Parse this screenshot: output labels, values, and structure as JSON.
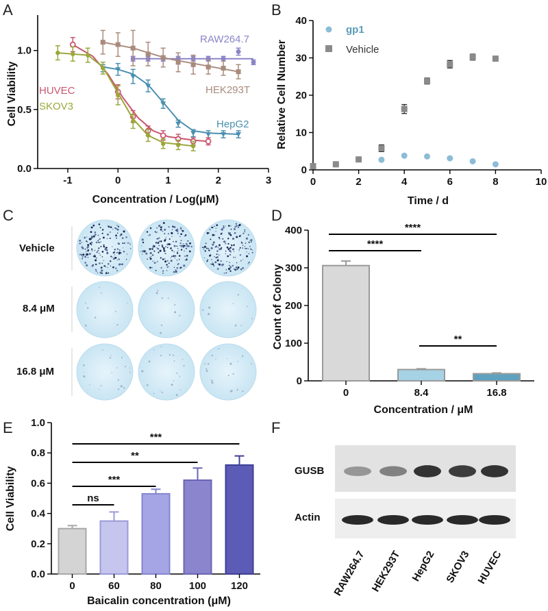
{
  "panels": {
    "A": {
      "label": "A",
      "chart_data": {
        "type": "scatter",
        "xlabel": "Concentration / Log(μM)",
        "ylabel": "Cell Viability",
        "xlim": [
          -1.6,
          3.0
        ],
        "ylim": [
          0.0,
          1.3
        ],
        "xticks": [
          "-1",
          "0",
          "1",
          "2",
          "3"
        ],
        "yticks": [
          "0.0",
          "0.5",
          "1.0"
        ],
        "series": [
          {
            "name": "RAW264.7",
            "color": "#8a84c8",
            "x": [
              0.3,
              0.6,
              0.9,
              1.2,
              1.5,
              1.8,
              2.1,
              2.4,
              2.7
            ],
            "y": [
              0.93,
              0.93,
              0.93,
              0.93,
              0.93,
              0.93,
              0.93,
              0.99,
              0.9
            ],
            "err": [
              0.02,
              0.02,
              0.02,
              0.02,
              0.02,
              0.02,
              0.02,
              0.03,
              0.02
            ],
            "fit": [
              [
                0.3,
                0.93
              ],
              [
                2.7,
                0.93
              ]
            ]
          },
          {
            "name": "HEK293T",
            "color": "#a98b7c",
            "x": [
              -0.3,
              0.0,
              0.3,
              0.6,
              0.9,
              1.2,
              1.5,
              1.8,
              2.1,
              2.4
            ],
            "y": [
              1.07,
              1.05,
              1.02,
              0.97,
              0.94,
              0.9,
              0.88,
              0.86,
              0.85,
              0.82
            ],
            "err": [
              0.1,
              0.1,
              0.15,
              0.1,
              0.08,
              0.08,
              0.08,
              0.06,
              0.06,
              0.06
            ],
            "fit": [
              [
                -0.3,
                1.07
              ],
              [
                0.3,
                1.02
              ],
              [
                1.0,
                0.93
              ],
              [
                2.4,
                0.82
              ]
            ]
          },
          {
            "name": "HepG2",
            "color": "#4a8fb0",
            "x": [
              -0.3,
              0.0,
              0.3,
              0.6,
              0.9,
              1.2,
              1.5,
              1.8,
              2.1,
              2.4
            ],
            "y": [
              0.85,
              0.84,
              0.78,
              0.7,
              0.55,
              0.38,
              0.3,
              0.29,
              0.29,
              0.29
            ],
            "err": [
              0.03,
              0.05,
              0.06,
              0.05,
              0.04,
              0.03,
              0.03,
              0.03,
              0.03,
              0.03
            ],
            "fit": [
              [
                -0.3,
                0.86
              ],
              [
                0.0,
                0.84
              ],
              [
                0.3,
                0.8
              ],
              [
                0.6,
                0.71
              ],
              [
                0.9,
                0.56
              ],
              [
                1.2,
                0.41
              ],
              [
                1.5,
                0.32
              ],
              [
                1.8,
                0.3
              ],
              [
                2.4,
                0.29
              ]
            ]
          },
          {
            "name": "HUVEC",
            "color": "#c9566f",
            "x": [
              -0.9,
              0.0,
              0.3,
              0.6,
              0.9,
              1.2,
              1.5,
              1.8
            ],
            "y": [
              1.05,
              0.65,
              0.44,
              0.32,
              0.28,
              0.25,
              0.23,
              0.23
            ],
            "err": [
              0.06,
              0.06,
              0.05,
              0.04,
              0.04,
              0.04,
              0.03,
              0.03
            ],
            "fit": [
              [
                -0.9,
                1.05
              ],
              [
                -0.5,
                0.95
              ],
              [
                -0.2,
                0.8
              ],
              [
                0.1,
                0.6
              ],
              [
                0.4,
                0.43
              ],
              [
                0.7,
                0.32
              ],
              [
                1.0,
                0.27
              ],
              [
                1.5,
                0.24
              ],
              [
                1.8,
                0.23
              ]
            ]
          },
          {
            "name": "SKOV3",
            "color": "#9aa83a",
            "x": [
              -1.2,
              -0.9,
              -0.6,
              -0.3,
              0.0,
              0.3,
              0.6,
              0.9,
              1.2,
              1.5
            ],
            "y": [
              0.98,
              0.97,
              0.96,
              0.85,
              0.62,
              0.4,
              0.28,
              0.21,
              0.2,
              0.19
            ],
            "err": [
              0.06,
              0.06,
              0.06,
              0.05,
              0.08,
              0.06,
              0.05,
              0.04,
              0.04,
              0.04
            ],
            "fit": [
              [
                -1.2,
                0.98
              ],
              [
                -0.6,
                0.96
              ],
              [
                -0.3,
                0.86
              ],
              [
                0.0,
                0.64
              ],
              [
                0.3,
                0.42
              ],
              [
                0.6,
                0.28
              ],
              [
                0.9,
                0.22
              ],
              [
                1.5,
                0.19
              ]
            ]
          }
        ]
      }
    },
    "B": {
      "label": "B",
      "chart_data": {
        "type": "scatter",
        "xlabel": "Time / d",
        "ylabel": "Relative Cell Number",
        "xlim": [
          0,
          10
        ],
        "ylim": [
          0,
          40
        ],
        "xticks": [
          "0",
          "2",
          "4",
          "6",
          "8",
          "10"
        ],
        "yticks": [
          "0",
          "10",
          "20",
          "30",
          "40"
        ],
        "series": [
          {
            "name": "gp1",
            "color": "#8cbcd6",
            "x": [
              0,
              1,
              2,
              3,
              4,
              5,
              6,
              7,
              8
            ],
            "y": [
              1.0,
              1.5,
              2.8,
              2.7,
              3.8,
              3.6,
              3.1,
              2.3,
              1.5
            ],
            "err": [
              0.3,
              0.3,
              0.4,
              0.3,
              0.3,
              0.3,
              0.3,
              0.3,
              0.3
            ]
          },
          {
            "name": "Vehicle",
            "color": "#8a8a8a",
            "x": [
              0,
              1,
              2,
              3,
              4,
              5,
              6,
              7,
              8
            ],
            "y": [
              1.0,
              1.5,
              2.8,
              5.8,
              16.3,
              23.8,
              28.3,
              30.2,
              29.8
            ],
            "err": [
              0.3,
              0.3,
              0.4,
              0.9,
              1.2,
              0.8,
              1.0,
              0.8,
              0.5
            ]
          }
        ]
      }
    },
    "C": {
      "label": "C",
      "rows": [
        "Vehicle",
        "8.4 μM",
        "16.8 μM"
      ],
      "colony_density": [
        1.0,
        0.05,
        0.12
      ]
    },
    "D": {
      "label": "D",
      "chart_data": {
        "type": "bar",
        "xlabel": "Concentration / μM",
        "ylabel": "Count of Colony",
        "categories": [
          "0",
          "8.4",
          "16.8"
        ],
        "values": [
          306,
          30,
          19
        ],
        "errors": [
          12,
          2,
          2
        ],
        "colors": [
          "#d9d9d9",
          "#a6d2e6",
          "#5fa2c0"
        ],
        "ylim": [
          0,
          400
        ],
        "yticks": [
          "0",
          "100",
          "200",
          "300",
          "400"
        ],
        "significance": [
          {
            "from": 0,
            "to": 2,
            "label": "****"
          },
          {
            "from": 0,
            "to": 1,
            "label": "****"
          },
          {
            "from": 1,
            "to": 2,
            "label": "**"
          }
        ]
      }
    },
    "E": {
      "label": "E",
      "chart_data": {
        "type": "bar",
        "xlabel": "Baicalin concentration (μM)",
        "ylabel": "Cell Viability",
        "categories": [
          "0",
          "60",
          "80",
          "100",
          "120"
        ],
        "values": [
          0.3,
          0.35,
          0.53,
          0.62,
          0.72
        ],
        "errors": [
          0.02,
          0.06,
          0.03,
          0.08,
          0.06
        ],
        "colors": [
          "#d4d4d4",
          "#c5c5ee",
          "#a5a5e6",
          "#8a85cc",
          "#5c5cb6"
        ],
        "edges": [
          "#a8a8a8",
          "#9a9ad8",
          "#8484cf",
          "#6a66b3",
          "#3f3f96"
        ],
        "ylim": [
          0,
          1.0
        ],
        "yticks": [
          "0.0",
          "0.2",
          "0.4",
          "0.6",
          "0.8",
          "1.0"
        ],
        "significance": [
          {
            "from": 0,
            "to": 4,
            "label": "***"
          },
          {
            "from": 0,
            "to": 3,
            "label": "**"
          },
          {
            "from": 0,
            "to": 2,
            "label": "***"
          },
          {
            "from": 0,
            "to": 1,
            "label": "ns"
          }
        ]
      }
    },
    "F": {
      "label": "F",
      "bands": [
        "GUSB",
        "Actin"
      ],
      "lanes": [
        "RAW264.7",
        "HEK293T",
        "HepG2",
        "SKOV3",
        "HUVEC"
      ],
      "gusb_intensity": [
        0.35,
        0.5,
        0.95,
        0.9,
        0.95
      ],
      "actin_intensity": [
        0.95,
        0.95,
        0.95,
        0.95,
        0.95
      ]
    }
  }
}
